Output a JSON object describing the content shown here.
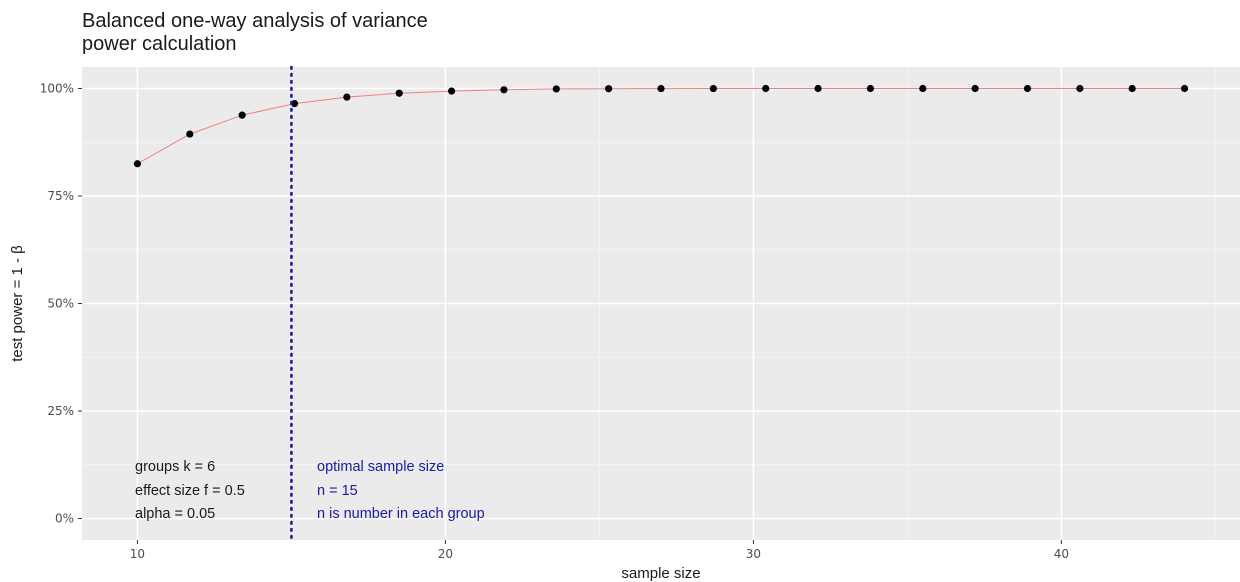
{
  "chart_data": {
    "type": "line",
    "title_lines": [
      "Balanced one-way analysis of variance",
      "power calculation"
    ],
    "xlabel": "sample size",
    "ylabel": "test power = 1 - β",
    "xlim": [
      8.2,
      45.8
    ],
    "ylim": [
      -0.05,
      1.05
    ],
    "x_ticks": [
      10,
      20,
      30,
      40
    ],
    "y_ticks": [
      0,
      0.25,
      0.5,
      0.75,
      1.0
    ],
    "y_tick_labels": [
      "0%",
      "25%",
      "50%",
      "75%",
      "100%"
    ],
    "x": [
      10,
      11.7,
      13.4,
      15.1,
      16.8,
      18.5,
      20.2,
      21.9,
      23.6,
      25.3,
      27.0,
      28.7,
      30.4,
      32.1,
      33.8,
      35.5,
      37.2,
      38.9,
      40.6,
      42.3,
      44.0
    ],
    "y": [
      0.825,
      0.894,
      0.938,
      0.965,
      0.98,
      0.989,
      0.994,
      0.997,
      0.999,
      0.9995,
      0.9998,
      0.9999,
      1.0,
      1.0,
      1.0,
      1.0,
      1.0,
      1.0,
      1.0,
      1.0,
      1.0
    ],
    "line_color": "#f08080",
    "point_color": "#000000",
    "vline": {
      "x": 15,
      "color": "#1a1aa6",
      "style": "dotted"
    },
    "grid": true,
    "background": "#ebebeb",
    "annotation_left": [
      "groups k = 6",
      "effect size f = 0.5",
      "alpha = 0.05"
    ],
    "annotation_right": [
      "optimal sample size",
      "n = 15",
      "n is number in each group"
    ],
    "annotation_right_color": "#1a1aa6"
  }
}
